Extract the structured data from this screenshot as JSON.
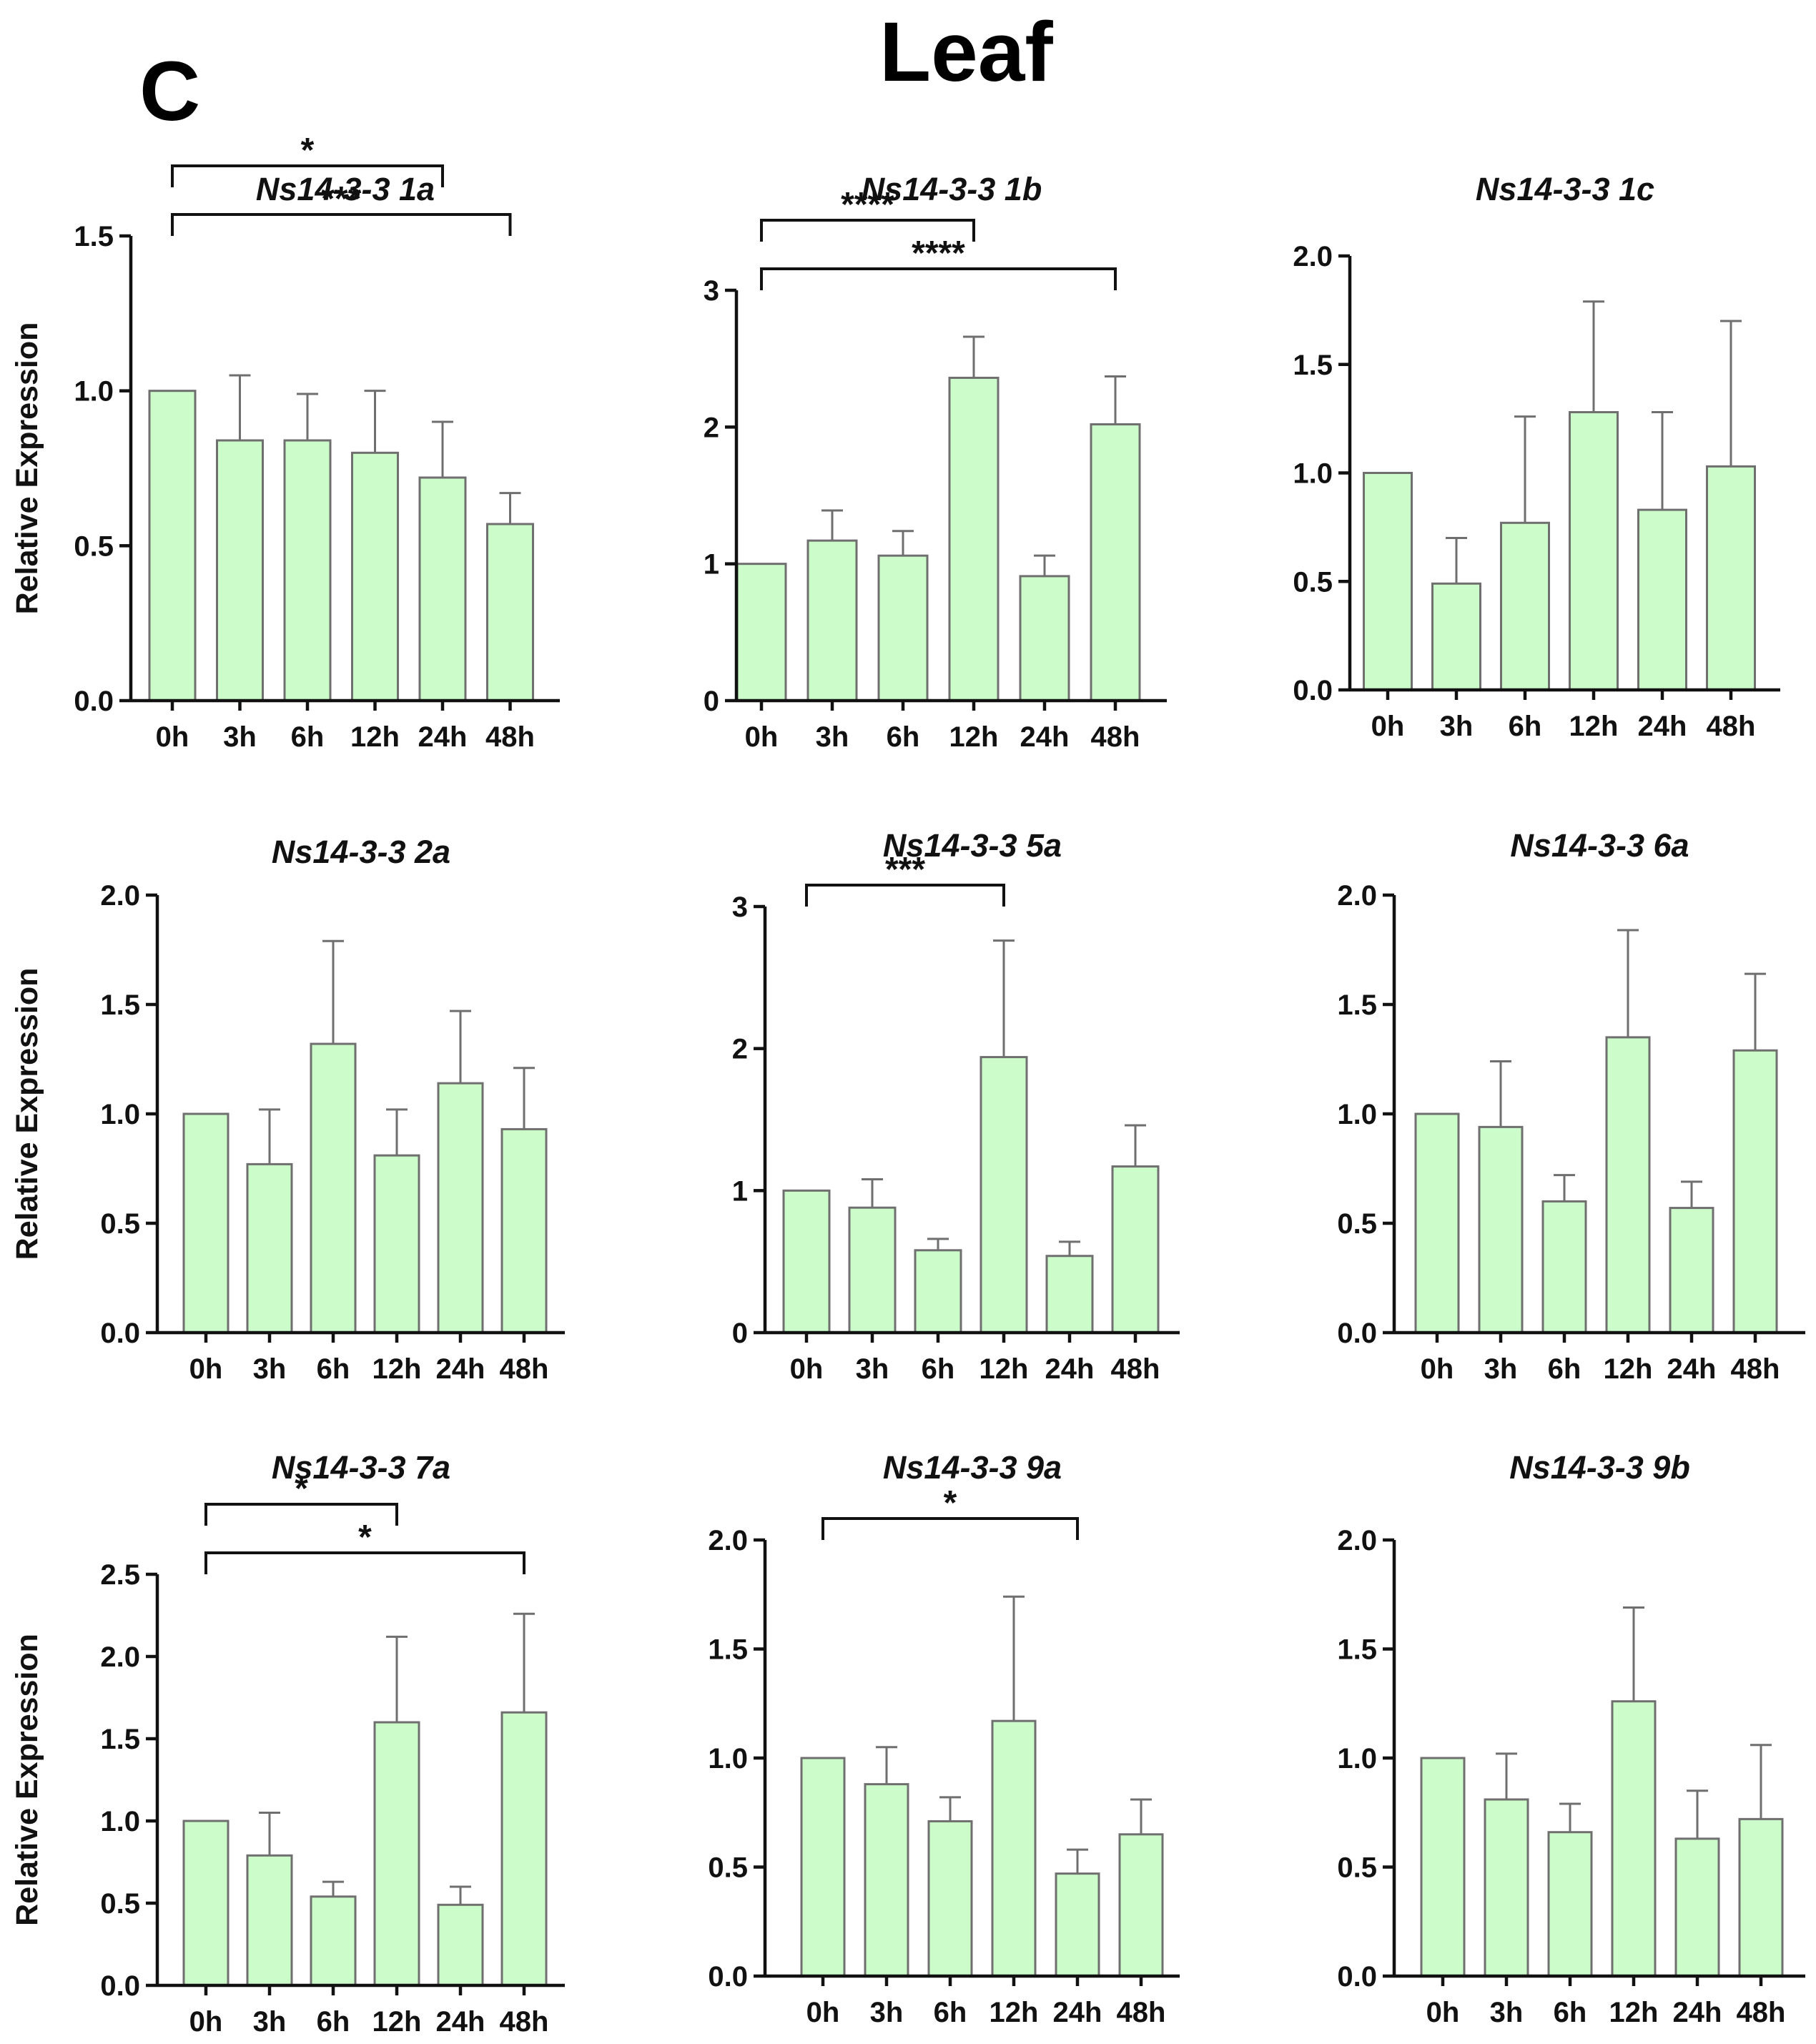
{
  "page": {
    "panel_letter": "C",
    "title": "Leaf"
  },
  "colors": {
    "bar_fill": "#ccfcc9",
    "bar_stroke": "#6f6f6f",
    "axis": "#111111"
  },
  "chart_data": [
    {
      "type": "bar",
      "title": "Ns14-3-3 1a",
      "ylabel": "Relative Expression",
      "categories": [
        "0h",
        "3h",
        "6h",
        "12h",
        "24h",
        "48h"
      ],
      "values": [
        1.0,
        0.84,
        0.84,
        0.8,
        0.72,
        0.57
      ],
      "errors": [
        0.0,
        0.21,
        0.15,
        0.2,
        0.18,
        0.1
      ],
      "ylim": [
        0,
        1.5
      ],
      "yticks": [
        0,
        0.5,
        1.0,
        1.5
      ],
      "ytick_labels": [
        "0.0",
        "0.5",
        "1.0",
        "1.5"
      ],
      "significance": [
        {
          "from": "0h",
          "to": "24h",
          "label": "*"
        },
        {
          "from": "0h",
          "to": "48h",
          "label": "***"
        }
      ]
    },
    {
      "type": "bar",
      "title": "Ns14-3-3 1b",
      "ylabel": "",
      "categories": [
        "0h",
        "3h",
        "6h",
        "12h",
        "24h",
        "48h"
      ],
      "values": [
        1.0,
        1.17,
        1.06,
        2.36,
        0.91,
        2.02
      ],
      "errors": [
        0.0,
        0.22,
        0.18,
        0.3,
        0.15,
        0.35
      ],
      "ylim": [
        0,
        3
      ],
      "yticks": [
        0,
        1,
        2,
        3
      ],
      "ytick_labels": [
        "0",
        "1",
        "2",
        "3"
      ],
      "significance": [
        {
          "from": "0h",
          "to": "12h",
          "label": "****"
        },
        {
          "from": "0h",
          "to": "48h",
          "label": "****"
        }
      ]
    },
    {
      "type": "bar",
      "title": "Ns14-3-3 1c",
      "ylabel": "",
      "categories": [
        "0h",
        "3h",
        "6h",
        "12h",
        "24h",
        "48h"
      ],
      "values": [
        1.0,
        0.49,
        0.77,
        1.28,
        0.83,
        1.03
      ],
      "errors": [
        0.0,
        0.21,
        0.49,
        0.51,
        0.45,
        0.67
      ],
      "ylim": [
        0,
        2.0
      ],
      "yticks": [
        0,
        0.5,
        1.0,
        1.5,
        2.0
      ],
      "ytick_labels": [
        "0.0",
        "0.5",
        "1.0",
        "1.5",
        "2.0"
      ],
      "significance": []
    },
    {
      "type": "bar",
      "title": "Ns14-3-3 2a",
      "ylabel": "Relative Expression",
      "categories": [
        "0h",
        "3h",
        "6h",
        "12h",
        "24h",
        "48h"
      ],
      "values": [
        1.0,
        0.77,
        1.32,
        0.81,
        1.14,
        0.93
      ],
      "errors": [
        0.0,
        0.25,
        0.47,
        0.21,
        0.33,
        0.28
      ],
      "ylim": [
        0,
        2.0
      ],
      "yticks": [
        0,
        0.5,
        1.0,
        1.5,
        2.0
      ],
      "ytick_labels": [
        "0.0",
        "0.5",
        "1.0",
        "1.5",
        "2.0"
      ],
      "significance": []
    },
    {
      "type": "bar",
      "title": "Ns14-3-3 5a",
      "ylabel": "",
      "categories": [
        "0h",
        "3h",
        "6h",
        "12h",
        "24h",
        "48h"
      ],
      "values": [
        1.0,
        0.88,
        0.58,
        1.94,
        0.54,
        1.17
      ],
      "errors": [
        0.0,
        0.2,
        0.08,
        0.82,
        0.1,
        0.29
      ],
      "ylim": [
        0,
        3
      ],
      "yticks": [
        0,
        1,
        2,
        3
      ],
      "ytick_labels": [
        "0",
        "1",
        "2",
        "3"
      ],
      "significance": [
        {
          "from": "0h",
          "to": "12h",
          "label": "***"
        }
      ]
    },
    {
      "type": "bar",
      "title": "Ns14-3-3 6a",
      "ylabel": "",
      "categories": [
        "0h",
        "3h",
        "6h",
        "12h",
        "24h",
        "48h"
      ],
      "values": [
        1.0,
        0.94,
        0.6,
        1.35,
        0.57,
        1.29
      ],
      "errors": [
        0.0,
        0.3,
        0.12,
        0.49,
        0.12,
        0.35
      ],
      "ylim": [
        0,
        2.0
      ],
      "yticks": [
        0,
        0.5,
        1.0,
        1.5,
        2.0
      ],
      "ytick_labels": [
        "0.0",
        "0.5",
        "1.0",
        "1.5",
        "2.0"
      ],
      "significance": []
    },
    {
      "type": "bar",
      "title": "Ns14-3-3 7a",
      "ylabel": "Relative Expression",
      "categories": [
        "0h",
        "3h",
        "6h",
        "12h",
        "24h",
        "48h"
      ],
      "values": [
        1.0,
        0.79,
        0.54,
        1.6,
        0.49,
        1.66
      ],
      "errors": [
        0.0,
        0.26,
        0.09,
        0.52,
        0.11,
        0.6
      ],
      "ylim": [
        0,
        2.5
      ],
      "yticks": [
        0,
        0.5,
        1.0,
        1.5,
        2.0,
        2.5
      ],
      "ytick_labels": [
        "0.0",
        "0.5",
        "1.0",
        "1.5",
        "2.0",
        "2.5"
      ],
      "significance": [
        {
          "from": "0h",
          "to": "12h",
          "label": "*"
        },
        {
          "from": "0h",
          "to": "48h",
          "label": "*"
        }
      ]
    },
    {
      "type": "bar",
      "title": "Ns14-3-3 9a",
      "ylabel": "",
      "categories": [
        "0h",
        "3h",
        "6h",
        "12h",
        "24h",
        "48h"
      ],
      "values": [
        1.0,
        0.88,
        0.71,
        1.17,
        0.47,
        0.65
      ],
      "errors": [
        0.0,
        0.17,
        0.11,
        0.57,
        0.11,
        0.16
      ],
      "ylim": [
        0,
        2.0
      ],
      "yticks": [
        0,
        0.5,
        1.0,
        1.5,
        2.0
      ],
      "ytick_labels": [
        "0.0",
        "0.5",
        "1.0",
        "1.5",
        "2.0"
      ],
      "significance": [
        {
          "from": "0h",
          "to": "24h",
          "label": "*"
        }
      ]
    },
    {
      "type": "bar",
      "title": "Ns14-3-3 9b",
      "ylabel": "",
      "categories": [
        "0h",
        "3h",
        "6h",
        "12h",
        "24h",
        "48h"
      ],
      "values": [
        1.0,
        0.81,
        0.66,
        1.26,
        0.63,
        0.72
      ],
      "errors": [
        0.0,
        0.21,
        0.13,
        0.43,
        0.22,
        0.34
      ],
      "ylim": [
        0,
        2.0
      ],
      "yticks": [
        0,
        0.5,
        1.0,
        1.5,
        2.0
      ],
      "ytick_labels": [
        "0.0",
        "0.5",
        "1.0",
        "1.5",
        "2.0"
      ],
      "significance": []
    }
  ]
}
